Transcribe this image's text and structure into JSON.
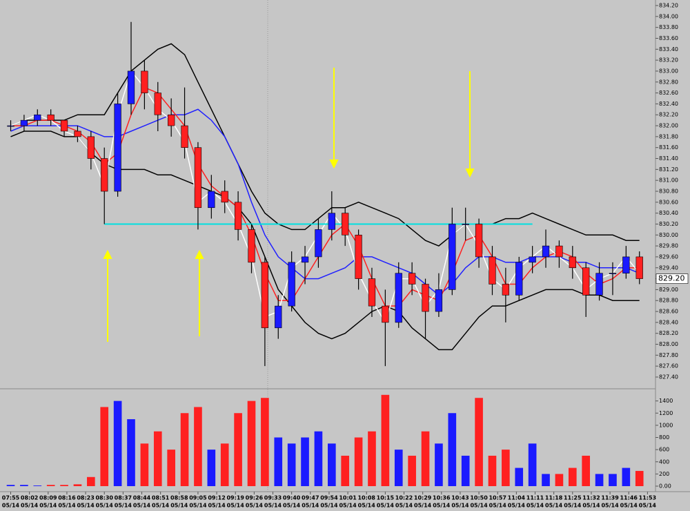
{
  "chart_data": {
    "type": "candlestick",
    "date": "05/14",
    "x": [
      "07:55",
      "08:00",
      "08:05",
      "08:10",
      "08:15",
      "08:20",
      "08:25",
      "08:30",
      "08:35",
      "08:40",
      "08:45",
      "08:50",
      "08:55",
      "09:00",
      "09:05",
      "09:10",
      "09:15",
      "09:20",
      "09:25",
      "09:30",
      "09:35",
      "09:40",
      "09:45",
      "09:50",
      "09:55",
      "10:00",
      "10:05",
      "10:10",
      "10:15",
      "10:20",
      "10:25",
      "10:30",
      "10:35",
      "10:40",
      "10:45",
      "10:50",
      "10:55",
      "11:00",
      "11:05",
      "11:10",
      "11:15",
      "11:20",
      "11:25",
      "11:30",
      "11:35",
      "11:40",
      "11:45",
      "11:50"
    ],
    "open": [
      832.0,
      832.0,
      832.1,
      832.2,
      832.1,
      831.9,
      831.8,
      831.4,
      830.8,
      832.4,
      833.0,
      832.6,
      832.2,
      832.0,
      831.6,
      830.5,
      830.8,
      830.6,
      830.1,
      829.5,
      828.3,
      828.7,
      829.5,
      829.6,
      830.1,
      830.4,
      830.0,
      829.2,
      828.7,
      828.4,
      829.3,
      829.1,
      828.6,
      829.0,
      830.2,
      830.2,
      829.6,
      829.1,
      828.9,
      829.5,
      829.6,
      829.8,
      829.6,
      829.4,
      828.9,
      829.3,
      829.3,
      829.6
    ],
    "high": [
      832.1,
      832.2,
      832.3,
      832.3,
      832.1,
      832.0,
      831.9,
      831.6,
      832.6,
      833.9,
      833.2,
      832.8,
      832.5,
      832.7,
      831.7,
      831.1,
      831.0,
      830.8,
      830.2,
      829.6,
      828.9,
      829.7,
      829.8,
      830.3,
      830.8,
      830.5,
      830.1,
      829.4,
      829.0,
      829.5,
      829.5,
      829.2,
      829.3,
      830.5,
      830.5,
      830.3,
      829.8,
      829.4,
      829.6,
      829.8,
      830.1,
      829.9,
      829.8,
      829.5,
      829.5,
      829.5,
      829.8,
      829.7
    ],
    "low": [
      831.9,
      831.9,
      832.0,
      832.0,
      831.8,
      831.7,
      831.2,
      830.2,
      830.7,
      832.2,
      832.3,
      831.9,
      831.8,
      831.4,
      830.1,
      830.3,
      830.4,
      829.9,
      829.3,
      827.6,
      828.1,
      828.6,
      829.1,
      829.4,
      829.9,
      829.8,
      829.0,
      828.5,
      827.6,
      828.3,
      828.9,
      828.1,
      828.5,
      828.9,
      829.9,
      829.4,
      828.9,
      828.4,
      828.8,
      829.3,
      829.4,
      829.4,
      829.2,
      828.5,
      828.8,
      828.9,
      829.2,
      829.1
    ],
    "close": [
      832.0,
      832.1,
      832.2,
      832.1,
      831.9,
      831.8,
      831.4,
      830.8,
      832.4,
      833.0,
      832.6,
      832.2,
      832.0,
      831.6,
      830.5,
      830.8,
      830.6,
      830.1,
      829.5,
      828.3,
      828.7,
      829.5,
      829.6,
      830.1,
      830.4,
      830.0,
      829.2,
      828.7,
      828.4,
      829.3,
      829.1,
      828.6,
      829.0,
      830.2,
      830.2,
      829.6,
      829.1,
      828.9,
      829.5,
      829.6,
      829.8,
      829.6,
      829.4,
      828.9,
      829.3,
      829.3,
      829.6,
      829.2
    ],
    "up_color": "#1a1aff",
    "down_color": "#ff2020",
    "overlays": [
      {
        "color": "#000000",
        "values": [
          832.0,
          832.1,
          832.1,
          832.1,
          832.1,
          832.2,
          832.2,
          832.2,
          832.6,
          833.0,
          833.2,
          833.4,
          833.5,
          833.3,
          832.8,
          832.3,
          831.8,
          831.3,
          830.8,
          830.4,
          830.2,
          830.1,
          830.1,
          830.3,
          830.5,
          830.5,
          830.6,
          830.5,
          830.4,
          830.3,
          830.1,
          829.9,
          829.8,
          830.0,
          830.2,
          830.2,
          830.2,
          830.3,
          830.3,
          830.4,
          830.3,
          830.2,
          830.1,
          830.0,
          830.0,
          830.0,
          829.9,
          829.9
        ]
      },
      {
        "color": "#000000",
        "values": [
          831.8,
          831.9,
          831.9,
          831.9,
          831.8,
          831.8,
          831.5,
          831.3,
          831.2,
          831.2,
          831.2,
          831.1,
          831.1,
          831.0,
          830.9,
          830.8,
          830.7,
          830.5,
          830.2,
          829.6,
          829.0,
          828.7,
          828.4,
          828.2,
          828.1,
          828.2,
          828.4,
          828.6,
          828.7,
          828.6,
          828.3,
          828.1,
          827.9,
          827.9,
          828.2,
          828.5,
          828.7,
          828.7,
          828.8,
          828.9,
          829.0,
          829.0,
          829.0,
          828.9,
          828.9,
          828.8,
          828.8,
          828.8
        ]
      },
      {
        "color": "#2020ff",
        "values": [
          831.9,
          832.0,
          832.0,
          832.0,
          832.0,
          832.0,
          831.9,
          831.8,
          831.8,
          831.9,
          832.0,
          832.1,
          832.2,
          832.2,
          832.3,
          832.1,
          831.8,
          831.3,
          830.6,
          830.0,
          829.6,
          829.4,
          829.2,
          829.2,
          829.3,
          829.4,
          829.6,
          829.6,
          829.5,
          829.4,
          829.3,
          829.1,
          828.9,
          829.1,
          829.4,
          829.6,
          829.6,
          829.5,
          829.5,
          829.6,
          829.6,
          829.6,
          829.5,
          829.5,
          829.4,
          829.4,
          829.4,
          829.3
        ]
      },
      {
        "color": "#ff2020",
        "values": [
          832.0,
          832.0,
          832.1,
          832.1,
          832.0,
          831.9,
          831.7,
          831.3,
          831.5,
          832.2,
          832.7,
          832.6,
          832.3,
          832.0,
          831.3,
          830.9,
          830.7,
          830.5,
          830.0,
          829.3,
          828.8,
          828.8,
          829.2,
          829.6,
          830.0,
          830.2,
          829.8,
          829.2,
          828.7,
          828.7,
          829.0,
          828.9,
          828.8,
          829.3,
          829.9,
          830.0,
          829.6,
          829.1,
          829.1,
          829.4,
          829.6,
          829.7,
          829.6,
          829.3,
          829.1,
          829.2,
          829.4,
          829.4
        ]
      },
      {
        "color": "#ffffff",
        "values": [
          832.0,
          832.1,
          832.2,
          832.1,
          831.9,
          831.8,
          831.5,
          830.9,
          832.2,
          833.0,
          832.7,
          832.3,
          832.1,
          831.7,
          830.6,
          830.8,
          830.6,
          830.2,
          829.6,
          828.5,
          828.6,
          829.4,
          829.6,
          830.0,
          830.4,
          830.1,
          829.3,
          828.8,
          828.4,
          829.2,
          829.2,
          828.7,
          829.0,
          830.0,
          830.2,
          829.8,
          829.2,
          829.0,
          829.4,
          829.6,
          829.8,
          829.6,
          829.4,
          829.0,
          829.2,
          829.3,
          829.6,
          829.3
        ]
      }
    ],
    "hline": {
      "value": 830.2,
      "from": "08:30",
      "to": "11:10",
      "color": "#00e0e0"
    },
    "last": {
      "value": 829.2,
      "label": "829.20"
    },
    "xlim": [
      "07:51",
      "11:56"
    ],
    "xticks": [
      "07:55",
      "08:02",
      "08:09",
      "08:16",
      "08:23",
      "08:30",
      "08:37",
      "08:44",
      "08:51",
      "08:58",
      "09:05",
      "09:12",
      "09:19",
      "09:26",
      "09:33",
      "09:40",
      "09:47",
      "09:54",
      "10:01",
      "10:08",
      "10:15",
      "10:22",
      "10:29",
      "10:36",
      "10:43",
      "10:50",
      "10:57",
      "11:04",
      "11:11",
      "11:18",
      "11:25",
      "11:32",
      "11:39",
      "11:46",
      "11:53"
    ],
    "ylim": [
      827.4,
      834.2
    ],
    "yticks": [
      {
        "value": 834.2,
        "label": "834.20"
      },
      {
        "value": 834.0,
        "label": "834.00"
      },
      {
        "value": 833.8,
        "label": "833.80"
      },
      {
        "value": 833.6,
        "label": "833.60"
      },
      {
        "value": 833.4,
        "label": "833.40"
      },
      {
        "value": 833.2,
        "label": "833.20"
      },
      {
        "value": 833.0,
        "label": "833.00"
      },
      {
        "value": 832.8,
        "label": "832.80"
      },
      {
        "value": 832.6,
        "label": "832.60"
      },
      {
        "value": 832.4,
        "label": "832.40"
      },
      {
        "value": 832.2,
        "label": "832.20"
      },
      {
        "value": 832.0,
        "label": "832.00"
      },
      {
        "value": 831.8,
        "label": "831.80"
      },
      {
        "value": 831.6,
        "label": "831.60"
      },
      {
        "value": 831.4,
        "label": "831.40"
      },
      {
        "value": 831.2,
        "label": "831.20"
      },
      {
        "value": 831.0,
        "label": "831.00"
      },
      {
        "value": 830.8,
        "label": "830.80"
      },
      {
        "value": 830.6,
        "label": "830.60"
      },
      {
        "value": 830.4,
        "label": "830.40"
      },
      {
        "value": 830.2,
        "label": "830.20"
      },
      {
        "value": 830.0,
        "label": "830.00"
      },
      {
        "value": 829.8,
        "label": "829.80"
      },
      {
        "value": 829.6,
        "label": "829.60"
      },
      {
        "value": 829.4,
        "label": "829.40"
      },
      {
        "value": 829.2,
        "label": "829.20"
      },
      {
        "value": 829.0,
        "label": "829.00"
      },
      {
        "value": 828.8,
        "label": "828.80"
      },
      {
        "value": 828.6,
        "label": "828.60"
      },
      {
        "value": 828.4,
        "label": "828.40"
      },
      {
        "value": 828.2,
        "label": "828.20"
      },
      {
        "value": 828.0,
        "label": "828.00"
      },
      {
        "value": 827.8,
        "label": "827.80"
      },
      {
        "value": 827.6,
        "label": "827.60"
      },
      {
        "value": 827.4,
        "label": "827.40"
      }
    ],
    "volume": {
      "values": [
        20,
        20,
        10,
        20,
        20,
        30,
        150,
        1300,
        1400,
        1100,
        700,
        900,
        600,
        1200,
        1300,
        600,
        700,
        1200,
        1400,
        1450,
        800,
        700,
        800,
        900,
        700,
        500,
        800,
        900,
        1500,
        600,
        500,
        900,
        700,
        1200,
        500,
        1450,
        500,
        600,
        300,
        700,
        200,
        200,
        300,
        500,
        200,
        200,
        300,
        250
      ],
      "ylim": [
        0,
        1600
      ],
      "yticks": [
        {
          "value": 0,
          "label": "0.00"
        },
        200,
        400,
        600,
        800,
        1000,
        1200,
        1400
      ]
    }
  }
}
